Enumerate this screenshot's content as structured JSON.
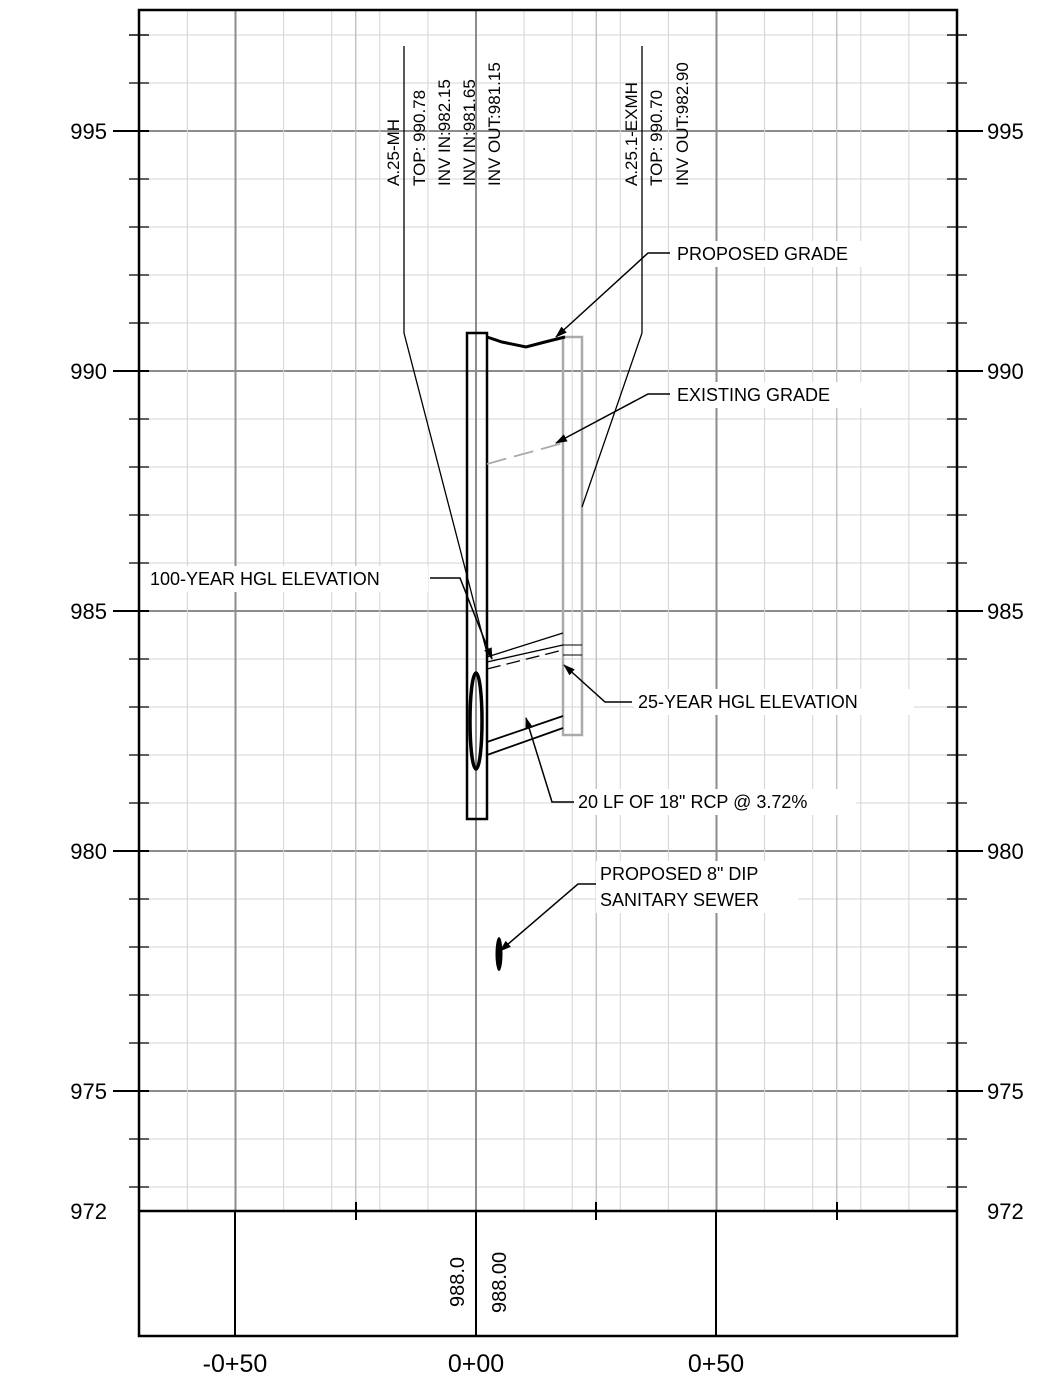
{
  "profile": {
    "elevation_labels": [
      "995",
      "990",
      "985",
      "980",
      "975",
      "972"
    ],
    "station_labels": [
      "-0+50",
      "0+00",
      "0+50"
    ],
    "structures": [
      {
        "lines": [
          "A.25-MH",
          "TOP: 990.78",
          "INV IN:982.15",
          "INV IN:981.65",
          "INV OUT:981.15"
        ]
      },
      {
        "lines": [
          "A.25.1-EXMH",
          "TOP: 990.70",
          "INV OUT:982.90"
        ]
      }
    ],
    "callouts": {
      "proposed_grade": "PROPOSED GRADE",
      "existing_grade": "EXISTING GRADE",
      "hgl_100": "100-YEAR HGL ELEVATION",
      "hgl_25": "25-YEAR HGL ELEVATION",
      "pipe": "20 LF OF 18\" RCP @ 3.72%",
      "sewer_line1": "PROPOSED 8\" DIP",
      "sewer_line2": "SANITARY SEWER"
    },
    "bottom_labels": [
      "988.0",
      "988.00"
    ]
  }
}
